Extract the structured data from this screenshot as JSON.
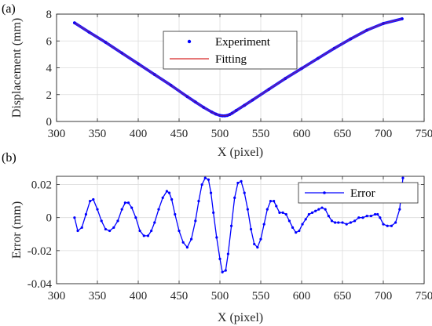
{
  "chart_data": [
    {
      "type": "line",
      "panel_label": "(a)",
      "xlabel": "X (pixel)",
      "ylabel": "Displacement (mm)",
      "xlim": [
        300,
        750
      ],
      "ylim": [
        0,
        8
      ],
      "xticks": [
        300,
        350,
        400,
        450,
        500,
        550,
        600,
        650,
        700,
        750
      ],
      "yticks": [
        0,
        2,
        4,
        6,
        8
      ],
      "grid": true,
      "legend_position": "top-center",
      "series": [
        {
          "name": "Experiment",
          "style": "dots",
          "color": "#0000ff",
          "x": [
            322,
            340,
            360,
            380,
            400,
            420,
            440,
            460,
            470,
            480,
            490,
            495,
            500,
            503,
            506,
            509,
            512,
            515,
            520,
            530,
            540,
            560,
            580,
            600,
            620,
            640,
            660,
            680,
            700,
            723
          ],
          "y": [
            7.35,
            6.65,
            5.9,
            5.1,
            4.3,
            3.5,
            2.7,
            1.85,
            1.45,
            1.05,
            0.7,
            0.55,
            0.45,
            0.42,
            0.42,
            0.45,
            0.52,
            0.62,
            0.82,
            1.2,
            1.6,
            2.4,
            3.2,
            3.95,
            4.7,
            5.45,
            6.15,
            6.8,
            7.3,
            7.65
          ]
        },
        {
          "name": "Fitting",
          "style": "line",
          "color": "#d62728",
          "x": [
            322,
            340,
            360,
            380,
            400,
            420,
            440,
            460,
            470,
            480,
            490,
            495,
            500,
            503,
            506,
            509,
            512,
            515,
            520,
            530,
            540,
            560,
            580,
            600,
            620,
            640,
            660,
            680,
            700,
            723
          ],
          "y": [
            7.35,
            6.65,
            5.9,
            5.1,
            4.3,
            3.5,
            2.7,
            1.85,
            1.45,
            1.05,
            0.7,
            0.55,
            0.45,
            0.42,
            0.42,
            0.45,
            0.52,
            0.62,
            0.82,
            1.2,
            1.6,
            2.4,
            3.2,
            3.95,
            4.7,
            5.45,
            6.15,
            6.8,
            7.3,
            7.65
          ]
        }
      ]
    },
    {
      "type": "line",
      "panel_label": "(b)",
      "xlabel": "X (pixel)",
      "ylabel": "Error (mm)",
      "xlim": [
        300,
        750
      ],
      "ylim": [
        -0.04,
        0.025
      ],
      "xticks": [
        300,
        350,
        400,
        450,
        500,
        550,
        600,
        650,
        700,
        750
      ],
      "yticks": [
        -0.04,
        -0.02,
        0,
        0.02
      ],
      "ytick_labels": [
        "-0.04",
        "-0.02",
        "0",
        "0.02"
      ],
      "grid": true,
      "legend_position": "top-right",
      "series": [
        {
          "name": "Error",
          "style": "line-dots",
          "color": "#0000ff",
          "x": [
            322,
            326,
            331,
            336,
            341,
            345,
            350,
            355,
            360,
            365,
            370,
            375,
            380,
            384,
            388,
            392,
            397,
            402,
            407,
            412,
            416,
            420,
            425,
            430,
            435,
            438,
            441,
            445,
            450,
            455,
            460,
            465,
            470,
            474,
            478,
            482,
            486,
            489,
            492,
            496,
            500,
            503,
            507,
            510,
            514,
            518,
            522,
            526,
            530,
            534,
            538,
            542,
            546,
            550,
            554,
            558,
            562,
            566,
            569,
            573,
            577,
            581,
            585,
            589,
            593,
            597,
            601,
            605,
            609,
            613,
            617,
            621,
            625,
            629,
            633,
            637,
            641,
            645,
            650,
            655,
            660,
            665,
            670,
            675,
            680,
            685,
            690,
            693,
            696,
            700,
            705,
            710,
            715,
            720,
            724
          ],
          "y": [
            0.0,
            -0.008,
            -0.006,
            0.002,
            0.01,
            0.011,
            0.005,
            -0.002,
            -0.007,
            -0.008,
            -0.006,
            -0.002,
            0.005,
            0.009,
            0.009,
            0.006,
            0.0,
            -0.008,
            -0.011,
            -0.011,
            -0.008,
            -0.003,
            0.005,
            0.012,
            0.016,
            0.015,
            0.011,
            0.002,
            -0.008,
            -0.015,
            -0.018,
            -0.013,
            -0.002,
            0.01,
            0.02,
            0.024,
            0.023,
            0.015,
            0.003,
            -0.012,
            -0.025,
            -0.033,
            -0.032,
            -0.022,
            -0.005,
            0.012,
            0.021,
            0.022,
            0.015,
            0.005,
            -0.007,
            -0.016,
            -0.018,
            -0.013,
            -0.004,
            0.005,
            0.01,
            0.01,
            0.007,
            0.003,
            0.003,
            0.002,
            -0.002,
            -0.006,
            -0.009,
            -0.008,
            -0.004,
            -0.001,
            0.002,
            0.003,
            0.004,
            0.005,
            0.006,
            0.005,
            0.001,
            -0.002,
            -0.003,
            -0.003,
            -0.003,
            -0.004,
            -0.003,
            -0.002,
            0.0,
            0.0,
            0.001,
            0.001,
            0.002,
            0.002,
            0.0,
            -0.004,
            -0.005,
            -0.005,
            -0.003,
            0.005,
            0.024
          ]
        }
      ]
    }
  ]
}
